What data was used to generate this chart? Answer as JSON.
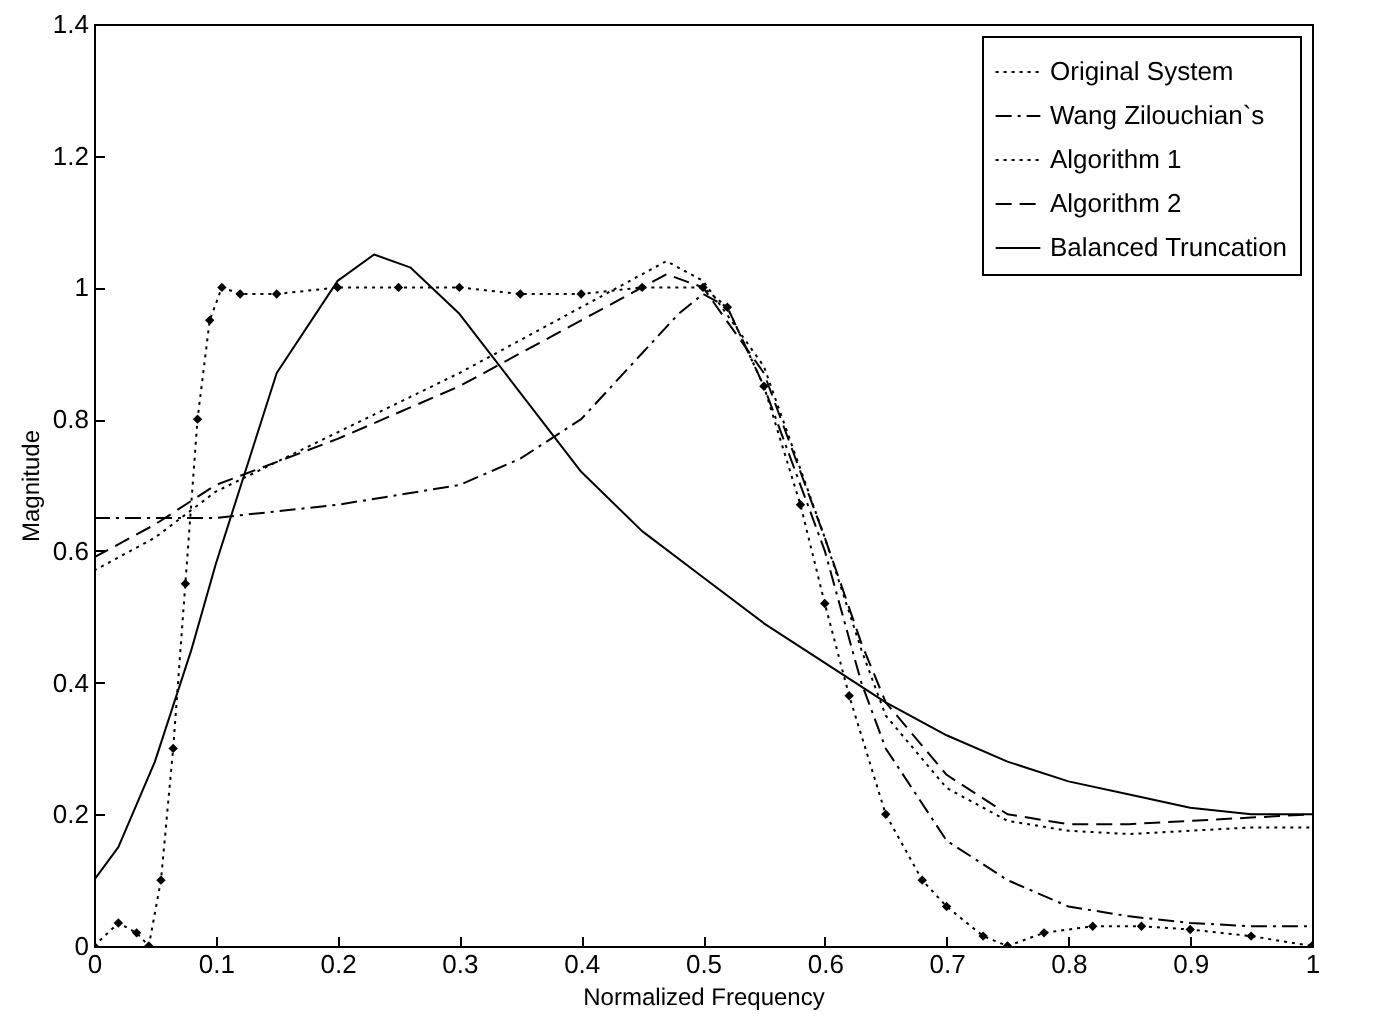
{
  "chart_data": {
    "type": "line",
    "xlabel": "Normalized Frequency",
    "ylabel": "Magnitude",
    "xlim": [
      0,
      1
    ],
    "ylim": [
      0,
      1.4
    ],
    "xticks": [
      0,
      0.1,
      0.2,
      0.3,
      0.4,
      0.5,
      0.6,
      0.7,
      0.8,
      0.9,
      1
    ],
    "yticks": [
      0,
      0.2,
      0.4,
      0.6,
      0.8,
      1,
      1.2,
      1.4
    ],
    "grid": false,
    "legend": "top right",
    "series": [
      {
        "name": "Original System",
        "color": "#000000",
        "line_style": "dotted",
        "marker": "diamond",
        "x": [
          0,
          0.02,
          0.035,
          0.045,
          0.055,
          0.065,
          0.075,
          0.085,
          0.095,
          0.105,
          0.12,
          0.15,
          0.2,
          0.25,
          0.3,
          0.35,
          0.4,
          0.45,
          0.5,
          0.52,
          0.55,
          0.58,
          0.6,
          0.62,
          0.65,
          0.68,
          0.7,
          0.73,
          0.75,
          0.78,
          0.82,
          0.86,
          0.9,
          0.95,
          1
        ],
        "values": [
          0,
          0.035,
          0.02,
          0,
          0.1,
          0.3,
          0.55,
          0.8,
          0.95,
          1.0,
          0.99,
          0.99,
          1.0,
          1.0,
          1.0,
          0.99,
          0.99,
          1.0,
          1.0,
          0.97,
          0.85,
          0.67,
          0.52,
          0.38,
          0.2,
          0.1,
          0.06,
          0.015,
          0,
          0.02,
          0.03,
          0.03,
          0.025,
          0.015,
          0
        ]
      },
      {
        "name": "Wang Zilouchian`s",
        "color": "#000000",
        "line_style": "dashdot",
        "marker": "none",
        "x": [
          0,
          0.1,
          0.2,
          0.3,
          0.35,
          0.4,
          0.45,
          0.48,
          0.5,
          0.52,
          0.55,
          0.6,
          0.63,
          0.65,
          0.7,
          0.75,
          0.8,
          0.85,
          0.9,
          0.95,
          1
        ],
        "values": [
          0.65,
          0.65,
          0.67,
          0.7,
          0.74,
          0.8,
          0.9,
          0.96,
          0.99,
          0.97,
          0.85,
          0.6,
          0.4,
          0.3,
          0.16,
          0.1,
          0.06,
          0.045,
          0.035,
          0.03,
          0.03
        ]
      },
      {
        "name": "Algorithm 1",
        "color": "#000000",
        "line_style": "dotted",
        "marker": "none",
        "x": [
          0,
          0.05,
          0.1,
          0.2,
          0.3,
          0.4,
          0.45,
          0.47,
          0.5,
          0.55,
          0.6,
          0.63,
          0.65,
          0.7,
          0.75,
          0.8,
          0.85,
          0.9,
          0.95,
          1
        ],
        "values": [
          0.57,
          0.62,
          0.69,
          0.78,
          0.87,
          0.97,
          1.02,
          1.04,
          1.01,
          0.88,
          0.62,
          0.45,
          0.35,
          0.24,
          0.19,
          0.175,
          0.17,
          0.175,
          0.18,
          0.18
        ]
      },
      {
        "name": "Algorithm 2",
        "color": "#000000",
        "line_style": "dashed",
        "marker": "none",
        "x": [
          0,
          0.05,
          0.1,
          0.2,
          0.3,
          0.4,
          0.45,
          0.47,
          0.5,
          0.55,
          0.6,
          0.63,
          0.65,
          0.7,
          0.75,
          0.8,
          0.85,
          0.9,
          0.95,
          1
        ],
        "values": [
          0.59,
          0.64,
          0.7,
          0.77,
          0.85,
          0.95,
          1.0,
          1.02,
          1.0,
          0.87,
          0.62,
          0.46,
          0.37,
          0.26,
          0.2,
          0.185,
          0.185,
          0.19,
          0.195,
          0.2
        ]
      },
      {
        "name": "Balanced Truncation",
        "color": "#000000",
        "line_style": "solid",
        "marker": "none",
        "x": [
          0,
          0.02,
          0.05,
          0.08,
          0.1,
          0.15,
          0.2,
          0.23,
          0.26,
          0.3,
          0.35,
          0.4,
          0.45,
          0.5,
          0.55,
          0.6,
          0.65,
          0.7,
          0.75,
          0.8,
          0.85,
          0.9,
          0.95,
          1
        ],
        "values": [
          0.1,
          0.15,
          0.28,
          0.45,
          0.58,
          0.87,
          1.01,
          1.05,
          1.03,
          0.96,
          0.84,
          0.72,
          0.63,
          0.56,
          0.49,
          0.43,
          0.37,
          0.32,
          0.28,
          0.25,
          0.23,
          0.21,
          0.2,
          0.2
        ]
      }
    ]
  }
}
